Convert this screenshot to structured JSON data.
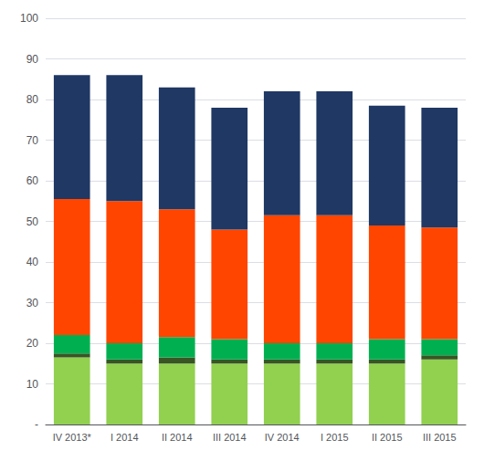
{
  "chart_data": {
    "type": "bar",
    "stacked": true,
    "grid": true,
    "categories": [
      "IV 2013*",
      "I 2014",
      "II 2014",
      "III 2014",
      "IV 2014",
      "I 2015",
      "II 2015",
      "III 2015"
    ],
    "series": [
      {
        "color": "#92D050",
        "values": [
          16.5,
          15.0,
          15.0,
          15.0,
          15.0,
          15.0,
          15.0,
          16.0
        ]
      },
      {
        "color": "#375623",
        "values": [
          1.0,
          1.0,
          1.5,
          1.0,
          1.0,
          1.0,
          1.0,
          1.0
        ]
      },
      {
        "color": "#00B050",
        "values": [
          4.5,
          4.0,
          5.0,
          5.0,
          4.0,
          4.0,
          5.0,
          4.0
        ]
      },
      {
        "color": "#FF4500",
        "values": [
          33.5,
          35.0,
          31.5,
          27.0,
          31.5,
          31.5,
          28.0,
          27.5
        ]
      },
      {
        "color": "#1F3864",
        "values": [
          30.5,
          31.0,
          30.0,
          30.0,
          30.5,
          30.5,
          29.5,
          29.5
        ]
      }
    ],
    "ylim": [
      0,
      100
    ],
    "yticks": [
      {
        "value": 0,
        "label": "-"
      },
      10,
      20,
      30,
      40,
      50,
      60,
      70,
      80,
      90,
      100
    ]
  }
}
